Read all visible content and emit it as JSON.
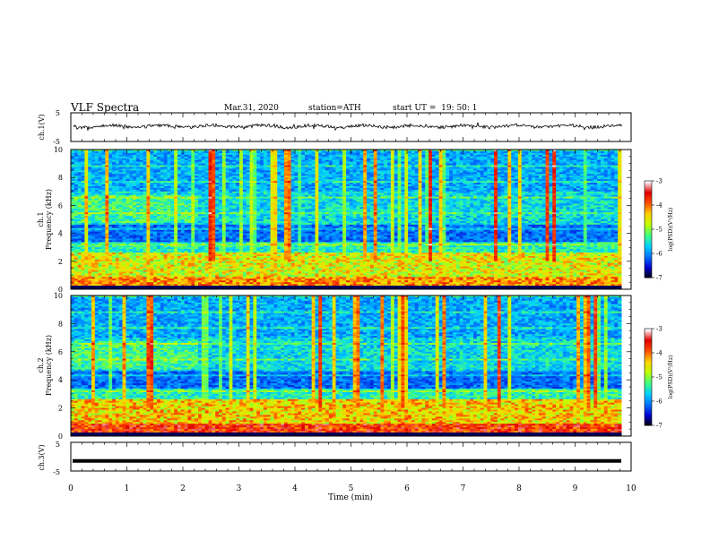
{
  "header": {
    "title": "VLF Spectra",
    "date": "Mar.31, 2020",
    "station": "station=ATH",
    "start": "start UT =  19: 50: 1"
  },
  "chart_data": [
    {
      "type": "line",
      "panel": "ch1-waveform",
      "ylabel": "ch.1(V)",
      "ylim": [
        -5,
        5
      ],
      "yticks": [
        -5,
        5
      ],
      "ytick_labels": [
        "-5",
        "5"
      ],
      "xlim": [
        0,
        10
      ],
      "description_values": {
        "mean": 0.3,
        "amplitude": 0.8
      }
    },
    {
      "type": "heatmap",
      "panel": "ch1-spectrogram",
      "ylabel": "ch.1\nFrequency (kHz)",
      "ylim": [
        0,
        10
      ],
      "yticks": [
        0,
        2,
        4,
        6,
        8,
        10
      ],
      "ytick_labels": [
        "0",
        "2",
        "4",
        "6",
        "8",
        "10"
      ],
      "xlim": [
        0,
        9.8
      ],
      "colorbar": {
        "label": "log(PSD)(V²/Hz)",
        "range": [
          -7,
          -3
        ],
        "ticks": [
          -7,
          -6,
          -5,
          -4,
          -3
        ],
        "tick_labels": [
          "-7",
          "-6",
          "-5",
          "-4",
          "-3"
        ],
        "colors": [
          "#000000",
          "#0000cc",
          "#0070ff",
          "#00d0ff",
          "#40ff80",
          "#c0ff00",
          "#ffd000",
          "#ff5000",
          "#e00000",
          "#ffffff"
        ]
      }
    },
    {
      "type": "heatmap",
      "panel": "ch2-spectrogram",
      "ylabel": "ch.2\nFrequency (kHz)",
      "ylim": [
        0,
        10
      ],
      "yticks": [
        0,
        2,
        4,
        6,
        8,
        10
      ],
      "ytick_labels": [
        "0",
        "2",
        "4",
        "6",
        "8",
        "10"
      ],
      "xlim": [
        0,
        9.8
      ],
      "colorbar": {
        "label": "log(PSD)(V²/Hz)",
        "range": [
          -7,
          -3
        ],
        "ticks": [
          -7,
          -6,
          -5,
          -4,
          -3
        ],
        "tick_labels": [
          "-7",
          "-6",
          "-5",
          "-4",
          "-3"
        ],
        "colors": [
          "#000000",
          "#0000cc",
          "#0070ff",
          "#00d0ff",
          "#40ff80",
          "#c0ff00",
          "#ffd000",
          "#ff5000",
          "#e00000",
          "#ffffff"
        ]
      }
    },
    {
      "type": "line",
      "panel": "ch3-waveform",
      "ylabel": "ch.3(V)",
      "ylim": [
        -5,
        5
      ],
      "yticks": [
        -5,
        5
      ],
      "ytick_labels": [
        "-5",
        "5"
      ],
      "xlim": [
        0,
        10
      ],
      "description_values": {
        "constant": -1.5
      }
    }
  ],
  "xaxis": {
    "label": "Time (min)",
    "range": [
      0,
      10
    ],
    "ticks": [
      0,
      1,
      2,
      3,
      4,
      5,
      6,
      7,
      8,
      9,
      10
    ],
    "tick_labels": [
      "0",
      "1",
      "2",
      "3",
      "4",
      "5",
      "6",
      "7",
      "8",
      "9",
      "10"
    ]
  }
}
